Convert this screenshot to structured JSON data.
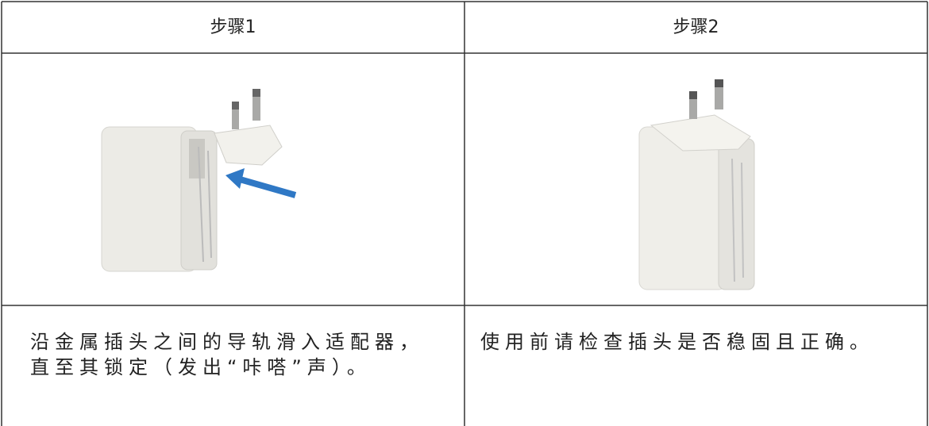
{
  "table": {
    "steps": [
      {
        "title": "步骤1",
        "lines": [
          "沿金属插头之间的导轨滑入适配器，",
          "直至其锁定（发出“咔嗒”声）。"
        ]
      },
      {
        "title": "步骤2",
        "lines": [
          "使用前请检查插头是否稳固且正确。"
        ]
      }
    ]
  }
}
